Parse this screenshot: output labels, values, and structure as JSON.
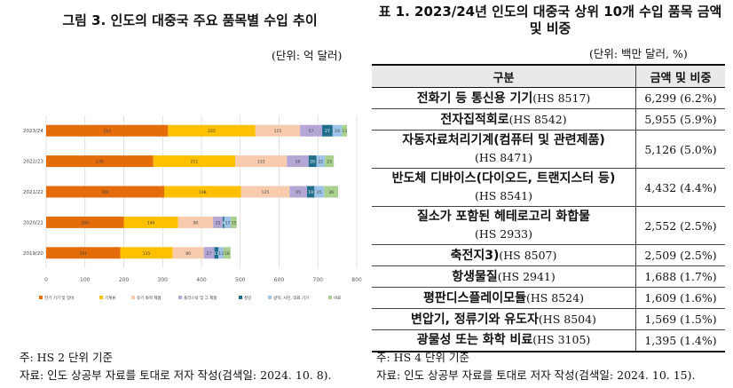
{
  "figure": {
    "title": "그림 3. 인도의 대중국 주요 품목별 수입 추이",
    "unit": "(단위: 억 달러)",
    "note": "주: HS 2 단위 기준",
    "source": "자료: 인도 상공부 자료를 토대로 저자 작성(검색일: 2024. 10. 8)."
  },
  "chart_data": {
    "type": "bar",
    "orientation": "horizontal",
    "stacked": true,
    "categories": [
      "2023/24",
      "2022/23",
      "2021/22",
      "2020/21",
      "2019/20"
    ],
    "series": [
      {
        "name": "전기 기기 및 장비",
        "color": "#e46c0a",
        "values": [
          314,
          276,
          304,
          200,
          191
        ]
      },
      {
        "name": "기계류",
        "color": "#ffc000",
        "values": [
          225,
          211,
          198,
          140,
          135
        ]
      },
      {
        "name": "유기 화학 제품",
        "color": "#f8cbad",
        "values": [
          115,
          133,
          125,
          90,
          80
        ]
      },
      {
        "name": "플라스틱 및 그 제품",
        "color": "#b4a7d6",
        "values": [
          57,
          56,
          45,
          25,
          27
        ]
      },
      {
        "name": "철강",
        "color": "#1f6f8b",
        "values": [
          27,
          20,
          19,
          4,
          11
        ]
      },
      {
        "name": "광학, 사진, 의료 기기",
        "color": "#9dc3e6",
        "values": [
          24,
          22,
          25,
          17,
          13
        ]
      },
      {
        "name": "비료",
        "color": "#a9d18e",
        "values": [
          13,
          23,
          36,
          15,
          18
        ]
      }
    ],
    "x_ticks": [
      "0",
      "100",
      "200",
      "300",
      "400",
      "500",
      "600",
      "700",
      "800"
    ],
    "xlim": [
      0,
      800
    ],
    "grid": true,
    "legend_position": "bottom"
  },
  "table": {
    "title": "표 1. 2023/24년 인도의 대중국 상위 10개 수입 품목 금액 및 비중",
    "unit": "(단위: 백만 달러, %)",
    "headers": [
      "구분",
      "금액 및 비중"
    ],
    "rows": [
      {
        "name": "전화기 등 통신용 기기",
        "code": "(HS 8517)",
        "value": "6,299 (6.2%)"
      },
      {
        "name": "전자집적회로",
        "code": "(HS 8542)",
        "value": "5,955 (5.9%)"
      },
      {
        "name": "자동자료처리기계(컴퓨터 및 관련제품)",
        "code": "(HS 8471)",
        "value": "5,126 (5.0%)"
      },
      {
        "name": "반도체 디바이스(다이오드, 트랜지스터 등)",
        "code": "(HS 8541)",
        "value": "4,432 (4.4%)"
      },
      {
        "name": "질소가 포함된 헤테로고리 화합물",
        "code": "(HS 2933)",
        "value": "2,552 (2.5%)"
      },
      {
        "name": "축전지3)",
        "code": "(HS 8507)",
        "value": "2,509 (2.5%)"
      },
      {
        "name": "항생물질",
        "code": "(HS 2941)",
        "value": "1,688 (1.7%)"
      },
      {
        "name": "평판디스플레이모듈",
        "code": "(HS 8524)",
        "value": "1,609 (1.6%)"
      },
      {
        "name": "변압기, 정류기와 유도자",
        "code": "(HS 8504)",
        "value": "1,569 (1.5%)"
      },
      {
        "name": "광물성 또는 화학 비료",
        "code": "(HS 3105)",
        "value": "1,395 (1.4%)"
      }
    ],
    "note": "주: HS 4 단위 기준",
    "source": "자료: 인도 상공부 자료를 토대로 저자 작성(검색일: 2024. 10. 15)."
  }
}
